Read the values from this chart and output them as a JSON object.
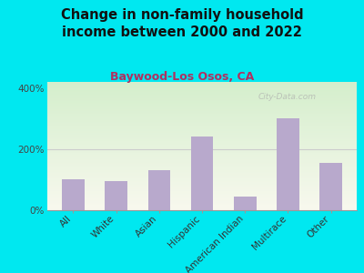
{
  "title": "Change in non-family household\nincome between 2000 and 2022",
  "subtitle": "Baywood-Los Osos, CA",
  "categories": [
    "All",
    "White",
    "Asian",
    "Hispanic",
    "American Indian",
    "Multirace",
    "Other"
  ],
  "values": [
    100,
    95,
    130,
    240,
    45,
    300,
    155
  ],
  "bar_color": "#b8a9cc",
  "title_fontsize": 10.5,
  "subtitle_fontsize": 9,
  "subtitle_color": "#b03060",
  "ylim": [
    0,
    420
  ],
  "yticks": [
    0,
    200,
    400
  ],
  "ytick_labels": [
    "0%",
    "200%",
    "400%"
  ],
  "background_outer": "#00e8f0",
  "plot_bg_top_color": "#d4eecc",
  "plot_bg_bottom_color": "#f8f8ee",
  "watermark": "City-Data.com",
  "grid_color": "#cccccc",
  "tick_label_fontsize": 7.5
}
